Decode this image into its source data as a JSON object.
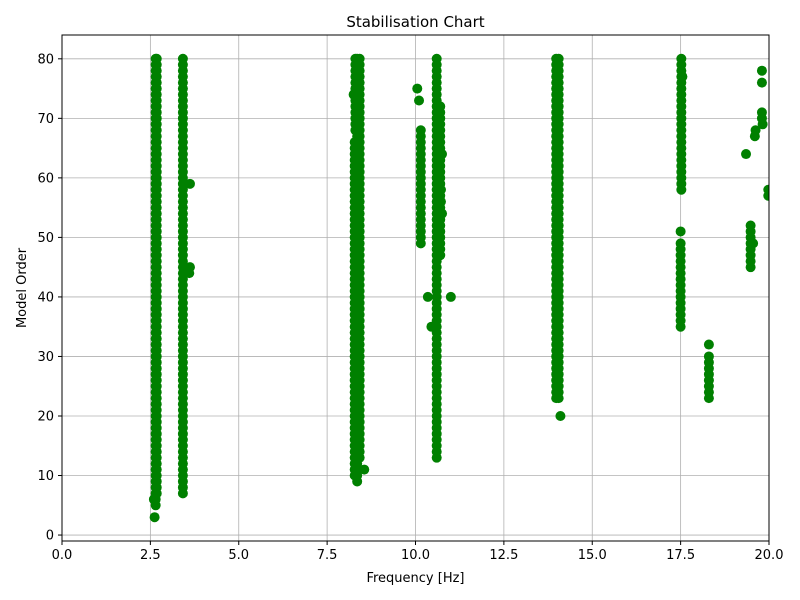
{
  "chart_data": {
    "type": "scatter",
    "title": "Stabilisation Chart",
    "xlabel": "Frequency [Hz]",
    "ylabel": "Model Order",
    "xlim": [
      0,
      20
    ],
    "ylim": [
      -1,
      84
    ],
    "xticks": [
      0,
      2.5,
      5,
      7.5,
      10,
      12.5,
      15,
      17.5,
      20
    ],
    "xtick_labels": [
      "0.0",
      "2.5",
      "5.0",
      "7.5",
      "10.0",
      "12.5",
      "15.0",
      "17.5",
      "20.0"
    ],
    "yticks": [
      0,
      10,
      20,
      30,
      40,
      50,
      60,
      70,
      80
    ],
    "ytick_labels": [
      "0",
      "10",
      "20",
      "30",
      "40",
      "50",
      "60",
      "70",
      "80"
    ],
    "grid": true,
    "marker_color": "#008000",
    "columns": [
      {
        "x": 2.65,
        "y_min": 5,
        "y_max": 80
      },
      {
        "x": 2.68,
        "y_min": 7,
        "y_max": 80
      },
      {
        "x": 3.42,
        "y_min": 7,
        "y_max": 80
      },
      {
        "x": 8.28,
        "y_min": 10,
        "y_max": 66
      },
      {
        "x": 8.3,
        "y_min": 68,
        "y_max": 80
      },
      {
        "x": 8.35,
        "y_min": 9,
        "y_max": 80
      },
      {
        "x": 8.42,
        "y_min": 13,
        "y_max": 80
      },
      {
        "x": 10.15,
        "y_min": 49,
        "y_max": 68
      },
      {
        "x": 10.6,
        "y_min": 13,
        "y_max": 80
      },
      {
        "x": 10.7,
        "y_min": 47,
        "y_max": 72
      },
      {
        "x": 13.98,
        "y_min": 23,
        "y_max": 80
      },
      {
        "x": 14.05,
        "y_min": 23,
        "y_max": 80
      },
      {
        "x": 17.5,
        "y_min": 35,
        "y_max": 49
      },
      {
        "x": 17.52,
        "y_min": 58,
        "y_max": 80
      },
      {
        "x": 18.3,
        "y_min": 23,
        "y_max": 30
      },
      {
        "x": 19.48,
        "y_min": 45,
        "y_max": 52
      }
    ],
    "points": [
      {
        "x": 2.62,
        "y": 3
      },
      {
        "x": 2.6,
        "y": 6
      },
      {
        "x": 3.62,
        "y": 59
      },
      {
        "x": 3.6,
        "y": 44
      },
      {
        "x": 3.62,
        "y": 45
      },
      {
        "x": 8.55,
        "y": 11
      },
      {
        "x": 8.25,
        "y": 74
      },
      {
        "x": 10.05,
        "y": 75
      },
      {
        "x": 10.1,
        "y": 73
      },
      {
        "x": 10.35,
        "y": 40
      },
      {
        "x": 10.45,
        "y": 35
      },
      {
        "x": 11.0,
        "y": 40
      },
      {
        "x": 10.75,
        "y": 64
      },
      {
        "x": 10.72,
        "y": 58
      },
      {
        "x": 10.75,
        "y": 54
      },
      {
        "x": 10.72,
        "y": 56
      },
      {
        "x": 14.1,
        "y": 20
      },
      {
        "x": 17.5,
        "y": 51
      },
      {
        "x": 17.55,
        "y": 77
      },
      {
        "x": 18.3,
        "y": 32
      },
      {
        "x": 19.35,
        "y": 64
      },
      {
        "x": 19.55,
        "y": 49
      },
      {
        "x": 19.6,
        "y": 67
      },
      {
        "x": 19.62,
        "y": 68
      },
      {
        "x": 19.8,
        "y": 78
      },
      {
        "x": 19.8,
        "y": 76
      },
      {
        "x": 19.8,
        "y": 71
      },
      {
        "x": 19.82,
        "y": 69
      },
      {
        "x": 19.8,
        "y": 70
      },
      {
        "x": 19.98,
        "y": 58
      },
      {
        "x": 19.98,
        "y": 57
      }
    ]
  }
}
